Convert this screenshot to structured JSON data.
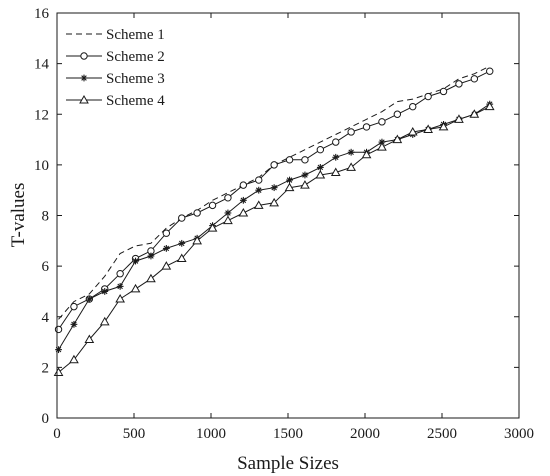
{
  "chart_data": {
    "type": "line",
    "xlabel": "Sample Sizes",
    "ylabel": "T-values",
    "xlim": [
      0,
      3000
    ],
    "ylim": [
      0,
      16
    ],
    "xticks": [
      "0",
      "500",
      "1000",
      "1500",
      "2000",
      "2500",
      "3000"
    ],
    "yticks": [
      "0",
      "2",
      "4",
      "6",
      "8",
      "10",
      "12",
      "14",
      "16"
    ],
    "grid": false,
    "legend_position": "top-left",
    "x": [
      10,
      110,
      210,
      310,
      410,
      510,
      610,
      710,
      810,
      910,
      1010,
      1110,
      1210,
      1310,
      1410,
      1510,
      1610,
      1710,
      1810,
      1910,
      2010,
      2110,
      2210,
      2310,
      2410,
      2510,
      2610,
      2710,
      2810
    ],
    "series": [
      {
        "name": "Scheme 1",
        "style": "dashed",
        "marker": "none",
        "color": "#1a1a1a",
        "values": [
          3.9,
          4.6,
          4.9,
          5.6,
          6.5,
          6.8,
          6.9,
          7.5,
          7.9,
          8.2,
          8.6,
          8.9,
          9.2,
          9.5,
          10.0,
          10.3,
          10.6,
          10.9,
          11.2,
          11.5,
          11.8,
          12.1,
          12.5,
          12.6,
          12.8,
          13.0,
          13.4,
          13.6,
          13.9
        ]
      },
      {
        "name": "Scheme 2",
        "style": "solid",
        "marker": "circle",
        "color": "#1a1a1a",
        "values": [
          3.5,
          4.4,
          4.7,
          5.1,
          5.7,
          6.3,
          6.6,
          7.3,
          7.9,
          8.1,
          8.4,
          8.7,
          9.2,
          9.4,
          10.0,
          10.2,
          10.2,
          10.6,
          10.9,
          11.3,
          11.5,
          11.7,
          12.0,
          12.3,
          12.7,
          12.9,
          13.2,
          13.4,
          13.7
        ]
      },
      {
        "name": "Scheme 3",
        "style": "solid",
        "marker": "star",
        "color": "#1a1a1a",
        "values": [
          2.7,
          3.7,
          4.7,
          5.0,
          5.2,
          6.2,
          6.4,
          6.7,
          6.9,
          7.1,
          7.6,
          8.1,
          8.6,
          9.0,
          9.1,
          9.4,
          9.6,
          9.9,
          10.3,
          10.5,
          10.5,
          10.9,
          11.0,
          11.2,
          11.4,
          11.6,
          11.8,
          12.0,
          12.4
        ]
      },
      {
        "name": "Scheme 4",
        "style": "solid",
        "marker": "triangle",
        "color": "#1a1a1a",
        "values": [
          1.8,
          2.3,
          3.1,
          3.8,
          4.7,
          5.1,
          5.5,
          6.0,
          6.3,
          7.0,
          7.5,
          7.8,
          8.1,
          8.4,
          8.5,
          9.1,
          9.2,
          9.6,
          9.7,
          9.9,
          10.4,
          10.7,
          11.0,
          11.3,
          11.4,
          11.5,
          11.8,
          12.0,
          12.3
        ]
      }
    ]
  }
}
